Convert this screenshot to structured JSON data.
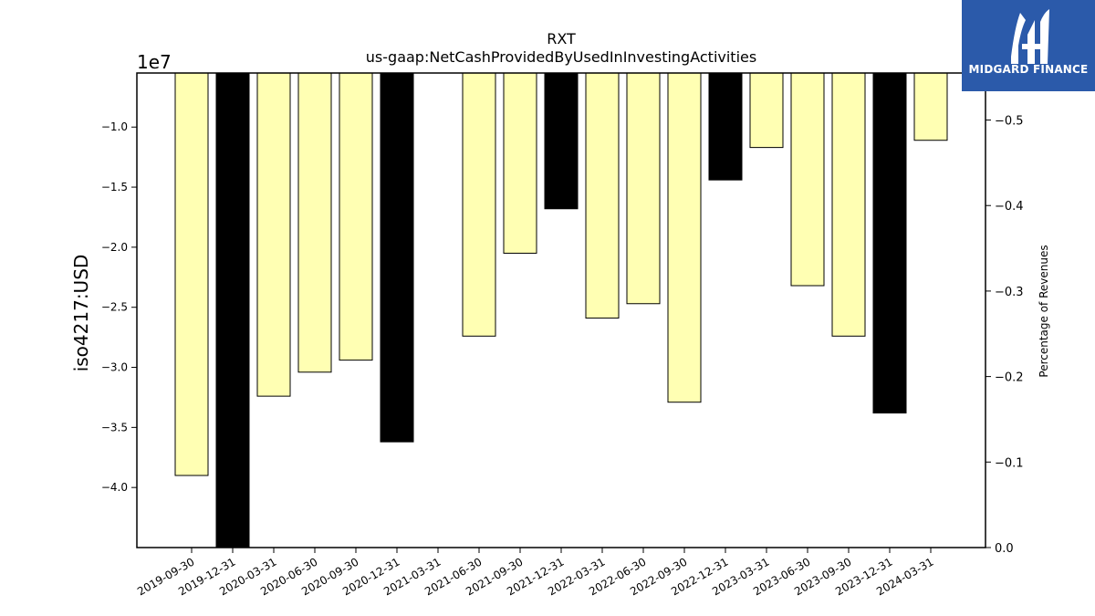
{
  "logo": {
    "text": "MIDGARD FINANCE",
    "color": "#2b5aaa"
  },
  "chart_data": {
    "type": "bar",
    "title": "RXT",
    "subtitle": "us-gaap:NetCashProvidedByUsedInInvestingActivities",
    "ylabel": "iso4217:USD",
    "y2label": "Percentage of Revenues",
    "offset_label": "1e7",
    "categories": [
      "2019-09-30",
      "2019-12-31",
      "2020-03-31",
      "2020-06-30",
      "2020-09-30",
      "2020-12-31",
      "2021-03-31",
      "2021-06-30",
      "2021-09-30",
      "2021-12-31",
      "2022-03-31",
      "2022-06-30",
      "2022-09-30",
      "2022-12-31",
      "2023-03-31",
      "2023-06-30",
      "2023-09-30",
      "2023-12-31",
      "2024-03-31"
    ],
    "values": [
      -3.9,
      -4.5,
      -3.24,
      -3.04,
      -2.94,
      -3.62,
      null,
      -2.74,
      -2.05,
      -1.68,
      -2.59,
      -2.47,
      -3.29,
      -1.44,
      -1.17,
      -2.32,
      -2.74,
      -3.38,
      -1.11
    ],
    "colors": [
      "#ffffb3",
      "#000000",
      "#ffffb3",
      "#ffffb3",
      "#ffffb3",
      "#000000",
      "#ffffb3",
      "#ffffb3",
      "#ffffb3",
      "#000000",
      "#ffffb3",
      "#ffffb3",
      "#ffffb3",
      "#000000",
      "#ffffb3",
      "#ffffb3",
      "#ffffb3",
      "#000000",
      "#ffffb3"
    ],
    "ylim": [
      -4.5,
      -0.55
    ],
    "yticks": [
      -4.0,
      -3.5,
      -3.0,
      -2.5,
      -2.0,
      -1.5,
      -1.0
    ],
    "ytick_labels": [
      "−4.0",
      "−3.5",
      "−3.0",
      "−2.5",
      "−2.0",
      "−1.5",
      "−1.0"
    ],
    "y2lim": [
      0.0,
      -0.555
    ],
    "y2ticks": [
      0.0,
      -0.1,
      -0.2,
      -0.3,
      -0.4,
      -0.5
    ],
    "y2tick_labels": [
      "0.0",
      "−0.1",
      "−0.2",
      "−0.3",
      "−0.4",
      "−0.5"
    ],
    "grid": false
  }
}
